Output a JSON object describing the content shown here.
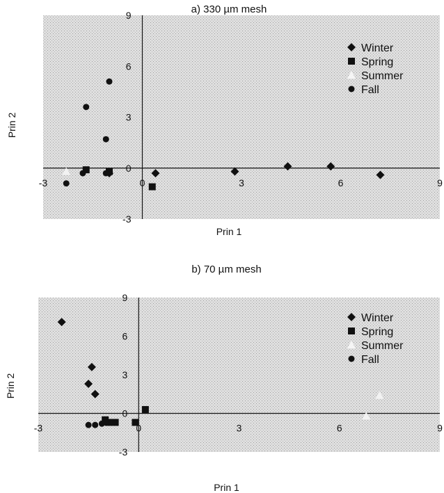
{
  "chart_data": [
    {
      "type": "scatter",
      "title": "a) 330 µm mesh",
      "xlabel": "Prin 1",
      "ylabel": "Prin 2",
      "xlim": [
        -3,
        9
      ],
      "ylim": [
        -3,
        9
      ],
      "xticks": [
        "-3",
        "0",
        "3",
        "6",
        "9"
      ],
      "yticks": [
        "9",
        "6",
        "3",
        "0",
        "-3"
      ],
      "legend_position": "top-right",
      "grid": false,
      "series": [
        {
          "name": "Winter",
          "marker": "diamond",
          "color": "#111111",
          "points": [
            [
              -1.0,
              -0.3
            ],
            [
              0.4,
              -0.3
            ],
            [
              2.8,
              -0.2
            ],
            [
              4.4,
              0.1
            ],
            [
              5.7,
              0.1
            ],
            [
              7.2,
              -0.4
            ]
          ]
        },
        {
          "name": "Spring",
          "marker": "square",
          "color": "#111111",
          "points": [
            [
              -1.0,
              -0.2
            ],
            [
              -1.7,
              -0.1
            ],
            [
              0.3,
              -1.1
            ]
          ]
        },
        {
          "name": "Summer",
          "marker": "triangle",
          "color": "#f2f2f2",
          "points": [
            [
              -2.3,
              -0.2
            ]
          ]
        },
        {
          "name": "Fall",
          "marker": "circle",
          "color": "#111111",
          "points": [
            [
              -1.0,
              5.1
            ],
            [
              -1.7,
              3.6
            ],
            [
              -1.1,
              1.7
            ],
            [
              -1.1,
              -0.3
            ],
            [
              -1.8,
              -0.3
            ],
            [
              -2.3,
              -0.9
            ]
          ]
        }
      ]
    },
    {
      "type": "scatter",
      "title": "b) 70 µm mesh",
      "xlabel": "Prin 1",
      "ylabel": "Prin 2",
      "xlim": [
        -3,
        9
      ],
      "ylim": [
        -3,
        9
      ],
      "xticks": [
        "-3",
        "0",
        "3",
        "6",
        "9"
      ],
      "yticks": [
        "9",
        "6",
        "3",
        "0",
        "-3"
      ],
      "legend_position": "top-right",
      "grid": false,
      "series": [
        {
          "name": "Winter",
          "marker": "diamond",
          "color": "#111111",
          "points": [
            [
              -2.3,
              7.1
            ],
            [
              -1.4,
              3.6
            ],
            [
              -1.5,
              2.3
            ],
            [
              -1.3,
              1.5
            ]
          ]
        },
        {
          "name": "Spring",
          "marker": "square",
          "color": "#111111",
          "points": [
            [
              0.2,
              0.3
            ],
            [
              -0.1,
              -0.7
            ],
            [
              -0.7,
              -0.7
            ],
            [
              -0.9,
              -0.7
            ],
            [
              -1.0,
              -0.5
            ]
          ]
        },
        {
          "name": "Summer",
          "marker": "triangle",
          "color": "#f2f2f2",
          "points": [
            [
              7.2,
              1.4
            ],
            [
              6.8,
              -0.2
            ]
          ]
        },
        {
          "name": "Fall",
          "marker": "circle",
          "color": "#111111",
          "points": [
            [
              -1.5,
              -0.9
            ],
            [
              -1.3,
              -0.9
            ],
            [
              -1.1,
              -0.8
            ],
            [
              -1.0,
              -0.7
            ]
          ]
        }
      ]
    }
  ]
}
